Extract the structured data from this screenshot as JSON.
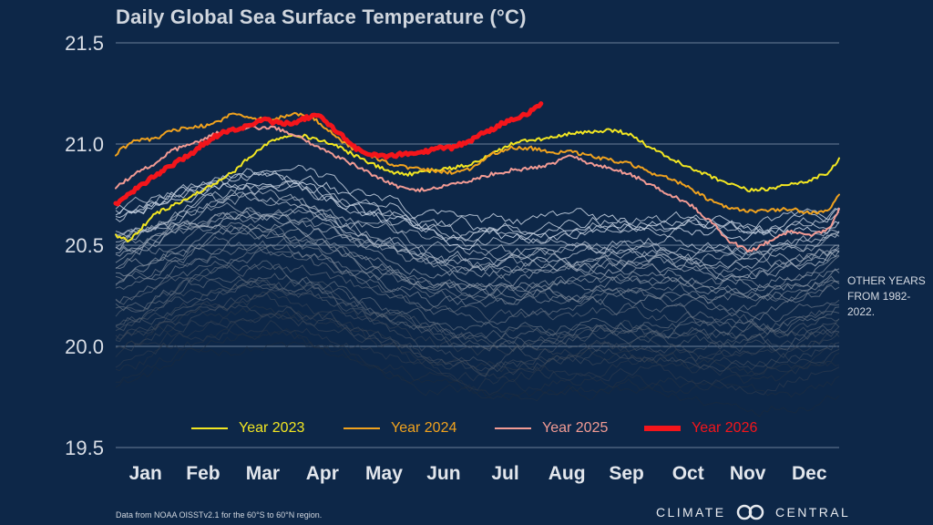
{
  "title": "Daily Global Sea Surface Temperature (°C)",
  "side_note": "OTHER YEARS FROM 1982-2022.",
  "source": "Data from NOAA OISSTv2.1 for the 60°S to 60°N region.",
  "brand": {
    "left": "CLIMATE",
    "right": "CENTRAL",
    "logo_icon": "climate-central-logo-icon"
  },
  "colors": {
    "background": "#0d2748",
    "grid": "#6a7f99",
    "year_2023": "#f2e622",
    "year_2024": "#f0a21e",
    "year_2025": "#f29b94",
    "year_2026": "#f4151b",
    "other_years": "#c8d3df"
  },
  "chart_data": {
    "type": "line",
    "title": "Daily Global Sea Surface Temperature (°C)",
    "xlabel": "",
    "ylabel": "",
    "x_domain": [
      1,
      365
    ],
    "ylim": [
      19.5,
      21.5
    ],
    "yticks": [
      "21.5",
      "21.0",
      "20.5",
      "20.0",
      "19.5"
    ],
    "ytick_values": [
      21.5,
      21.0,
      20.5,
      20.0,
      19.5
    ],
    "months": [
      "Jan",
      "Feb",
      "Mar",
      "Apr",
      "May",
      "Jun",
      "Jul",
      "Aug",
      "Sep",
      "Oct",
      "Nov",
      "Dec"
    ],
    "month_days": [
      16,
      45,
      75,
      105,
      136,
      166,
      197,
      228,
      258,
      289,
      319,
      350
    ],
    "grid": true,
    "legend_position": "bottom",
    "series": [
      {
        "name": "Year 2023",
        "color": "#f2e622",
        "width": 2,
        "x": [
          1,
          8,
          20,
          35,
          50,
          60,
          70,
          80,
          90,
          100,
          110,
          120,
          130,
          140,
          150,
          160,
          170,
          180,
          190,
          200,
          210,
          220,
          230,
          240,
          250,
          260,
          270,
          280,
          290,
          300,
          310,
          320,
          330,
          340,
          350,
          360,
          365
        ],
        "y": [
          20.55,
          20.52,
          20.65,
          20.72,
          20.8,
          20.86,
          20.95,
          21.02,
          21.05,
          21.03,
          21.0,
          20.95,
          20.9,
          20.86,
          20.85,
          20.87,
          20.88,
          20.9,
          20.95,
          21.0,
          21.02,
          21.03,
          21.05,
          21.06,
          21.07,
          21.05,
          20.98,
          20.93,
          20.88,
          20.84,
          20.8,
          20.77,
          20.78,
          20.8,
          20.82,
          20.86,
          20.93
        ]
      },
      {
        "name": "Year 2024",
        "color": "#f0a21e",
        "width": 2,
        "x": [
          1,
          10,
          20,
          30,
          40,
          50,
          60,
          70,
          80,
          90,
          100,
          110,
          120,
          130,
          140,
          150,
          160,
          170,
          180,
          190,
          200,
          210,
          220,
          230,
          240,
          250,
          260,
          270,
          280,
          290,
          300,
          310,
          320,
          330,
          340,
          350,
          360,
          365
        ],
        "y": [
          20.95,
          21.02,
          21.02,
          21.07,
          21.08,
          21.1,
          21.15,
          21.13,
          21.12,
          21.15,
          21.13,
          21.05,
          20.98,
          20.94,
          20.9,
          20.88,
          20.87,
          20.86,
          20.88,
          20.95,
          20.98,
          20.98,
          20.96,
          20.96,
          20.94,
          20.92,
          20.9,
          20.86,
          20.83,
          20.78,
          20.72,
          20.68,
          20.67,
          20.67,
          20.68,
          20.66,
          20.67,
          20.75
        ]
      },
      {
        "name": "Year 2025",
        "color": "#f29b94",
        "width": 2,
        "x": [
          1,
          10,
          20,
          30,
          40,
          50,
          60,
          70,
          80,
          90,
          100,
          110,
          120,
          130,
          140,
          150,
          160,
          170,
          180,
          190,
          200,
          210,
          220,
          230,
          240,
          250,
          260,
          270,
          280,
          290,
          300,
          310,
          320,
          330,
          340,
          350,
          360,
          365
        ],
        "y": [
          20.78,
          20.85,
          20.9,
          20.97,
          21.0,
          21.05,
          21.07,
          21.08,
          21.08,
          21.05,
          21.0,
          20.95,
          20.9,
          20.85,
          20.8,
          20.77,
          20.78,
          20.8,
          20.82,
          20.85,
          20.87,
          20.88,
          20.9,
          20.95,
          20.9,
          20.88,
          20.85,
          20.8,
          20.75,
          20.7,
          20.62,
          20.52,
          20.47,
          20.52,
          20.57,
          20.55,
          20.58,
          20.68
        ]
      },
      {
        "name": "Year 2026",
        "color": "#f4151b",
        "width": 5,
        "x": [
          1,
          5,
          10,
          15,
          20,
          25,
          30,
          35,
          40,
          45,
          50,
          55,
          60,
          65,
          70,
          75,
          80,
          85,
          90,
          95,
          100,
          105,
          110,
          115,
          120,
          125,
          130,
          135,
          140,
          145,
          150,
          155,
          160,
          165,
          170,
          175,
          180,
          185,
          190,
          195,
          200,
          205,
          210,
          215
        ],
        "y": [
          20.7,
          20.74,
          20.77,
          20.8,
          20.84,
          20.87,
          20.9,
          20.93,
          20.96,
          21.0,
          21.03,
          21.06,
          21.07,
          21.08,
          21.1,
          21.12,
          21.11,
          21.1,
          21.1,
          21.12,
          21.14,
          21.13,
          21.08,
          21.04,
          20.99,
          20.96,
          20.95,
          20.94,
          20.94,
          20.95,
          20.95,
          20.96,
          20.97,
          20.98,
          20.98,
          21.0,
          21.02,
          21.05,
          21.07,
          21.1,
          21.12,
          21.14,
          21.16,
          21.2
        ]
      }
    ],
    "background_years": {
      "label": "OTHER YEARS FROM 1982-2022.",
      "first": 1982,
      "last": 2022
    }
  },
  "legend": [
    {
      "label": "Year 2023",
      "color": "#f2e622",
      "thick": false
    },
    {
      "label": "Year 2024",
      "color": "#f0a21e",
      "thick": false
    },
    {
      "label": "Year 2025",
      "color": "#f29b94",
      "thick": false
    },
    {
      "label": "Year 2026",
      "color": "#f4151b",
      "thick": true
    }
  ]
}
